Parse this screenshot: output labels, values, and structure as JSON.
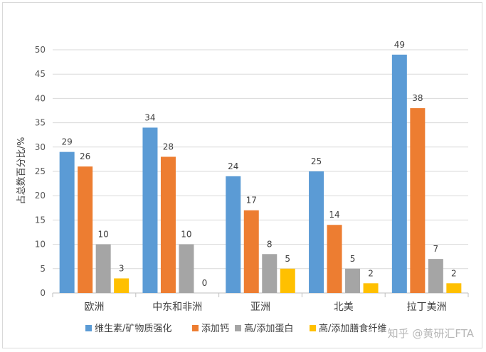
{
  "chart_data": {
    "type": "bar",
    "title": "",
    "xlabel": "",
    "ylabel": "占总数百分比/%",
    "ylim": [
      0,
      50
    ],
    "yticks": [
      0,
      5,
      10,
      15,
      20,
      25,
      30,
      35,
      40,
      45,
      50
    ],
    "grid": true,
    "legend_position": "bottom",
    "categories": [
      "欧洲",
      "中东和非洲",
      "亚洲",
      "北美",
      "拉丁美洲"
    ],
    "series": [
      {
        "name": "维生素/矿物质强化",
        "color": "#5b9bd5",
        "values": [
          29,
          34,
          24,
          25,
          49
        ]
      },
      {
        "name": "添加钙",
        "color": "#ed7d31",
        "values": [
          26,
          28,
          17,
          14,
          38
        ]
      },
      {
        "name": "高/添加蛋白",
        "color": "#a5a5a5",
        "values": [
          10,
          10,
          8,
          5,
          7
        ]
      },
      {
        "name": "高/添加膳食纤维",
        "color": "#ffc000",
        "values": [
          3,
          0,
          5,
          2,
          2
        ]
      }
    ]
  },
  "watermark": "知乎 @黄研汇FTA"
}
